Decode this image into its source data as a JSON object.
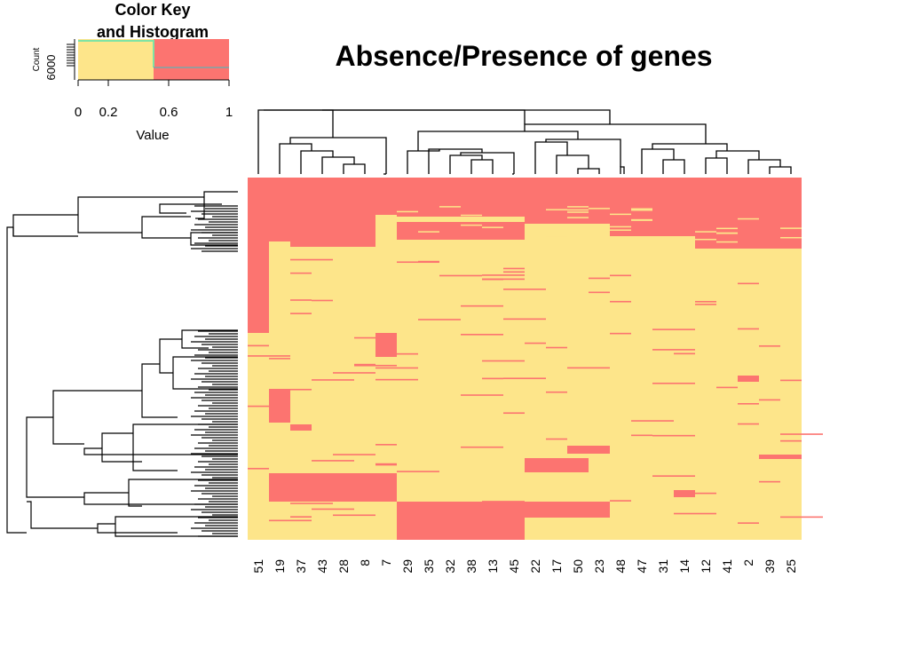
{
  "chart_data": {
    "type": "heatmap",
    "title": "Absence/Presence of genes",
    "colors": {
      "absent": "#FDE58A",
      "present": "#FC7470",
      "low_hist": "#7FE3A4",
      "high_hist": "#9A9A9A"
    },
    "column_labels": [
      "51",
      "19",
      "37",
      "43",
      "28",
      "8",
      "7",
      "29",
      "35",
      "32",
      "38",
      "13",
      "45",
      "22",
      "17",
      "50",
      "23",
      "48",
      "47",
      "31",
      "14",
      "12",
      "41",
      "2",
      "39",
      "25"
    ],
    "color_key": {
      "title_line1": "Color Key",
      "title_line2": "and Histogram",
      "xlabel": "Value",
      "ylabel": "Count",
      "y_tick": "6000",
      "x_ticks": [
        "0",
        "0.2",
        "0.6",
        "1"
      ],
      "x_tick_values": [
        0,
        0.2,
        0.6,
        1
      ],
      "xlim": [
        0,
        1
      ],
      "breakpoint": 0.5
    }
  }
}
